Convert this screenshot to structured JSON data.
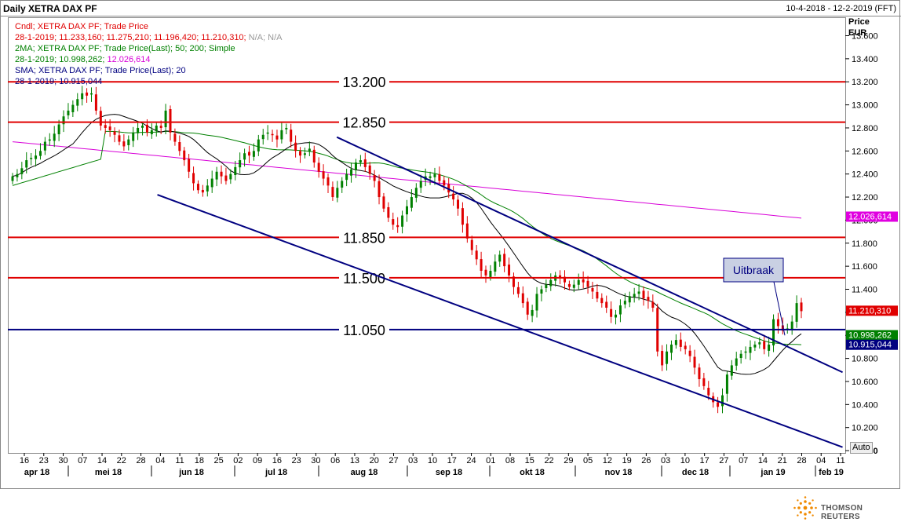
{
  "header": {
    "title": "Daily XETRA DAX PF",
    "date_range": "10-4-2018 - 12-2-2019 (FFT)"
  },
  "legend": {
    "cndl_label": "Cndl; XETRA DAX PF; Trade Price",
    "cndl_values": "28-1-2019; 11.233,160; 11.275,210; 11.196,420; 11.210,310;",
    "cndl_na": "N/A; N/A",
    "ma_label": "2MA; XETRA DAX PF; Trade Price(Last); 50; 200; Simple",
    "ma_date": "28-1-2019;",
    "ma_value50": "10.998,262;",
    "ma_value200": "12.026,614",
    "sma_label": "SMA; XETRA DAX PF; Trade Price(Last); 20",
    "sma_values": "28-1-2019; 10.915,044"
  },
  "colors": {
    "up": "#008000",
    "down": "#e00000",
    "hline_red": "#e00000",
    "hline_navy": "#000080",
    "trend": "#000080",
    "ma50": "#008000",
    "ma200": "#d800d8",
    "sma20": "#000000"
  },
  "y_axis": {
    "title": "Price",
    "unit": "EUR",
    "ticks": [
      "13.600",
      "13.400",
      "13.200",
      "13.000",
      "12.800",
      "12.600",
      "12.400",
      "12.200",
      "12.000",
      "11.800",
      "11.600",
      "11.400",
      "11.200",
      "11.000",
      "10.800",
      "10.600",
      "10.400",
      "10.200",
      "10.000"
    ],
    "tick_values": [
      13600,
      13400,
      13200,
      13000,
      12800,
      12600,
      12400,
      12200,
      12000,
      11800,
      11600,
      11400,
      11200,
      11000,
      10800,
      10600,
      10400,
      10200,
      10000
    ],
    "range": [
      9980,
      13760
    ],
    "auto_label": "Auto"
  },
  "value_tags": [
    {
      "text": "12.026,614",
      "value": 12026.614,
      "bg": "#e000e0",
      "fg": "#ffffff"
    },
    {
      "text": "11.210,310",
      "value": 11210.31,
      "bg": "#e00000",
      "fg": "#ffffff"
    },
    {
      "text": "10.998,262",
      "value": 10998.262,
      "bg": "#008000",
      "fg": "#ffffff"
    },
    {
      "text": "10.915,044",
      "value": 10915.044,
      "bg": "#000080",
      "fg": "#ffffff"
    }
  ],
  "x_axis": {
    "day_ticks": [
      "16",
      "23",
      "30",
      "07",
      "14",
      "22",
      "28",
      "04",
      "11",
      "18",
      "25",
      "02",
      "09",
      "16",
      "23",
      "30",
      "06",
      "13",
      "20",
      "27",
      "03",
      "10",
      "17",
      "24",
      "01",
      "08",
      "15",
      "22",
      "29",
      "05",
      "12",
      "19",
      "26",
      "03",
      "10",
      "17",
      "27",
      "07",
      "14",
      "21",
      "28",
      "04",
      "11"
    ],
    "months": [
      "apr 18",
      "mei 18",
      "jun 18",
      "jul 18",
      "aug 18",
      "sep 18",
      "okt 18",
      "nov 18",
      "dec 18",
      "jan 19",
      "feb 19"
    ]
  },
  "chart_data": {
    "type": "candlestick",
    "title": "Daily XETRA DAX PF",
    "ylabel": "Price EUR",
    "ylim": [
      9980,
      13760
    ],
    "horizontal_levels": [
      {
        "label": "13.200",
        "value": 13200,
        "color": "red"
      },
      {
        "label": "12.850",
        "value": 12850,
        "color": "red"
      },
      {
        "label": "11.850",
        "value": 11850,
        "color": "red"
      },
      {
        "label": "11.500",
        "value": 11500,
        "color": "red"
      },
      {
        "label": "11.050",
        "value": 11050,
        "color": "navy"
      }
    ],
    "last_close": 11210.31,
    "ma50_last": 10998.262,
    "ma200_last": 12026.614,
    "sma20_last": 10915.044,
    "trend_lines": [
      {
        "name": "upper",
        "from": [
          "2018-08-09",
          12720
        ],
        "to": [
          "2019-02-11",
          10680
        ]
      },
      {
        "name": "lower",
        "from": [
          "2018-06-04",
          12220
        ],
        "to": [
          "2019-02-11",
          10030
        ]
      }
    ],
    "annotation": "Uitbraak",
    "ohlc_closes": [
      12380,
      12400,
      12450,
      12520,
      12540,
      12560,
      12600,
      12680,
      12700,
      12750,
      12830,
      12900,
      12950,
      13000,
      13050,
      13100,
      13080,
      13100,
      12950,
      12820,
      12800,
      12780,
      12740,
      12680,
      12640,
      12700,
      12760,
      12800,
      12820,
      12760,
      12780,
      12820,
      12800,
      12950,
      12760,
      12680,
      12600,
      12520,
      12420,
      12320,
      12260,
      12240,
      12300,
      12360,
      12420,
      12380,
      12340,
      12400,
      12460,
      12520,
      12580,
      12560,
      12600,
      12700,
      12740,
      12760,
      12740,
      12700,
      12780,
      12800,
      12680,
      12600,
      12560,
      12580,
      12620,
      12500,
      12420,
      12360,
      12300,
      12200,
      12280,
      12340,
      12400,
      12440,
      12500,
      12520,
      12460,
      12400,
      12340,
      12200,
      12100,
      12020,
      11960,
      11940,
      12040,
      12120,
      12200,
      12280,
      12340,
      12380,
      12380,
      12400,
      12340,
      12300,
      12240,
      12180,
      12100,
      11960,
      11840,
      11740,
      11660,
      11560,
      11520,
      11560,
      11640,
      11700,
      11600,
      11520,
      11420,
      11360,
      11280,
      11180,
      11220,
      11360,
      11400,
      11440,
      11480,
      11520,
      11500,
      11460,
      11420,
      11440,
      11480,
      11460,
      11420,
      11380,
      11320,
      11280,
      11240,
      11160,
      11180,
      11260,
      11300,
      11340,
      11360,
      11380,
      11320,
      11300,
      11240,
      10860,
      10740,
      10860,
      10920,
      10960,
      10900,
      10880,
      10820,
      10720,
      10620,
      10560,
      10480,
      10420,
      10380,
      10480,
      10660,
      10740,
      10800,
      10840,
      10860,
      10900,
      10920,
      10940,
      10880,
      10920,
      11140,
      11080,
      11040,
      11060,
      11120,
      11280,
      11210
    ]
  }
}
